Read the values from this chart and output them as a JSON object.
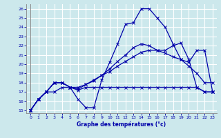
{
  "title": "Graphe des températures (°c)",
  "bg_color": "#cce8ec",
  "grid_color": "#ffffff",
  "line_color": "#0000aa",
  "xlim_min": -0.5,
  "xlim_max": 23.5,
  "ylim_min": 14.7,
  "ylim_max": 26.5,
  "xticks": [
    0,
    1,
    2,
    3,
    4,
    5,
    6,
    7,
    8,
    9,
    10,
    11,
    12,
    13,
    14,
    15,
    16,
    17,
    18,
    19,
    20,
    21,
    22,
    23
  ],
  "yticks": [
    15,
    16,
    17,
    18,
    19,
    20,
    21,
    22,
    23,
    24,
    25,
    26
  ],
  "line1_x": [
    0,
    1,
    2,
    3,
    4,
    5,
    6,
    7,
    8,
    9,
    10,
    11,
    12,
    13,
    14,
    15,
    16,
    17,
    18,
    19,
    20,
    21,
    22,
    23
  ],
  "line1_y": [
    15.0,
    16.2,
    17.0,
    18.0,
    18.0,
    17.5,
    16.2,
    15.3,
    15.3,
    18.3,
    20.2,
    22.2,
    24.3,
    24.5,
    26.0,
    26.0,
    25.0,
    24.0,
    22.2,
    20.5,
    19.8,
    19.0,
    18.0,
    18.0
  ],
  "line2_x": [
    0,
    1,
    2,
    3,
    4,
    5,
    6,
    7,
    8,
    9,
    10,
    11,
    12,
    13,
    14,
    15,
    16,
    17,
    18,
    19,
    20,
    21,
    22,
    23
  ],
  "line2_y": [
    15.0,
    16.2,
    17.0,
    18.0,
    18.0,
    17.5,
    17.2,
    17.5,
    17.5,
    17.5,
    17.5,
    17.5,
    17.5,
    17.5,
    17.5,
    17.5,
    17.5,
    17.5,
    17.5,
    17.5,
    17.5,
    17.5,
    17.0,
    17.0
  ],
  "line3_x": [
    0,
    1,
    2,
    3,
    4,
    5,
    6,
    7,
    8,
    9,
    10,
    11,
    12,
    13,
    14,
    15,
    16,
    17,
    18,
    19,
    20,
    21,
    22,
    23
  ],
  "line3_y": [
    15.0,
    16.2,
    17.0,
    18.0,
    18.0,
    17.5,
    17.3,
    17.8,
    18.3,
    18.8,
    19.2,
    19.8,
    20.3,
    20.8,
    21.3,
    21.5,
    21.5,
    21.5,
    22.0,
    22.3,
    20.5,
    17.5,
    17.0,
    17.0
  ],
  "line4_x": [
    0,
    1,
    2,
    3,
    4,
    5,
    6,
    7,
    8,
    9,
    10,
    11,
    12,
    13,
    14,
    15,
    16,
    17,
    18,
    19,
    20,
    21,
    22,
    23
  ],
  "line4_y": [
    15.0,
    16.2,
    17.0,
    17.0,
    17.5,
    17.5,
    17.5,
    17.8,
    18.2,
    18.8,
    19.5,
    20.3,
    21.0,
    21.8,
    22.2,
    22.0,
    21.5,
    21.2,
    20.8,
    20.5,
    20.2,
    21.5,
    21.5,
    17.0
  ]
}
